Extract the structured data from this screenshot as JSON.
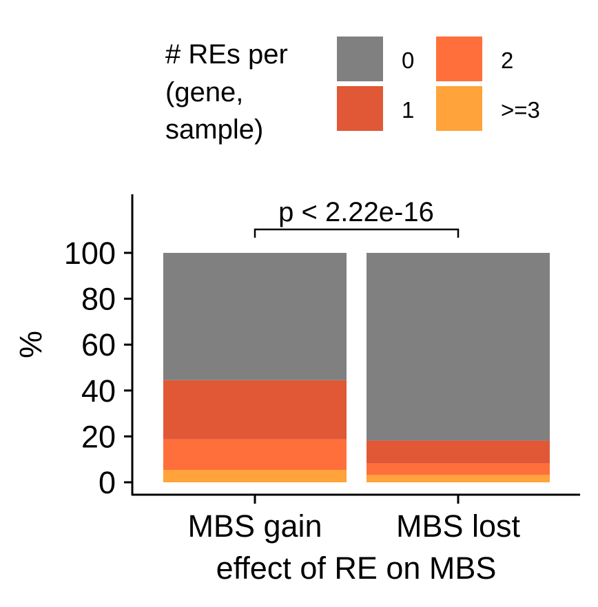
{
  "chart_data": {
    "type": "bar",
    "stacked": true,
    "xlabel": "effect of RE on MBS",
    "ylabel": "%",
    "categories": [
      "MBS gain",
      "MBS lost"
    ],
    "ylim": [
      0,
      100
    ],
    "yticks": [
      "0",
      "20",
      "40",
      "60",
      "80",
      "100"
    ],
    "legend": {
      "title_lines": [
        "# REs per",
        "(gene,",
        "sample)"
      ],
      "position": "top"
    },
    "series": [
      {
        "name": ">=3",
        "color": "#FFA33A",
        "values": [
          5.4,
          3.2
        ]
      },
      {
        "name": "2",
        "color": "#FF6F3C",
        "values": [
          13.3,
          5.0
        ]
      },
      {
        "name": "1",
        "color": "#E05835",
        "values": [
          25.8,
          10.0
        ]
      },
      {
        "name": "0",
        "color": "#808080",
        "values": [
          55.5,
          81.8
        ]
      }
    ],
    "annotations": [
      {
        "text": "p < 2.22e-16",
        "between": [
          "MBS gain",
          "MBS lost"
        ]
      }
    ]
  }
}
